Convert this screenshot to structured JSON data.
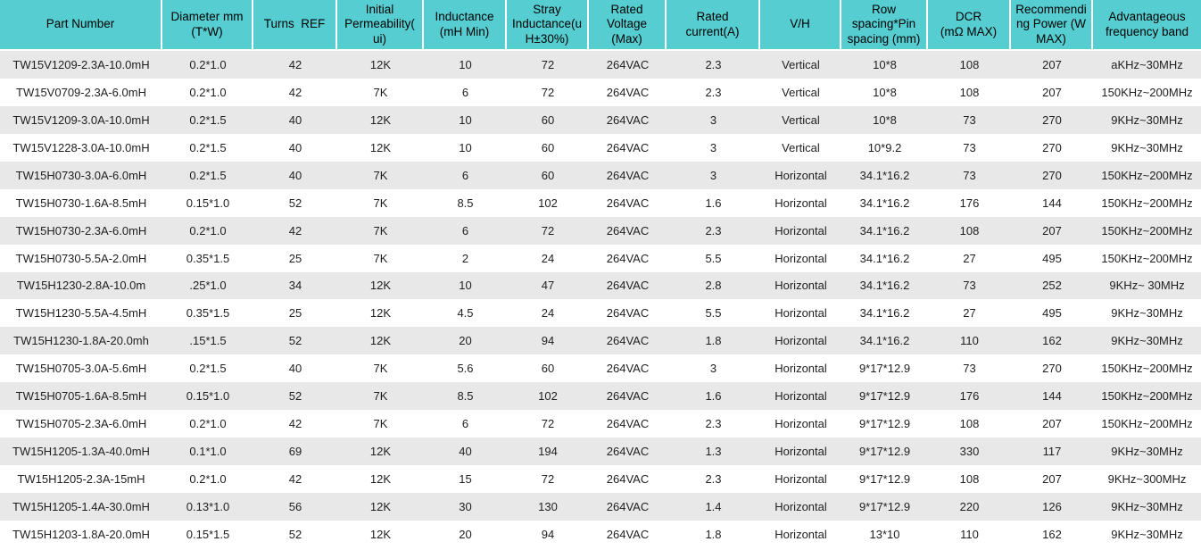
{
  "colors": {
    "header_bg": "#55cdd1",
    "row_alt_bg": "#e8e8e8",
    "row_bg": "#ffffff",
    "divider": "#ffffff",
    "header_text": "#000000",
    "cell_text": "#1f1f1f"
  },
  "table": {
    "columns": [
      {
        "id": "part-number",
        "label": "Part Number"
      },
      {
        "id": "diameter",
        "label": "Diameter mm\n(T*W)"
      },
      {
        "id": "turns-ref",
        "label": "Turns  REF"
      },
      {
        "id": "initial-permeability",
        "label": "Initial\nPermeability(\nui)"
      },
      {
        "id": "inductance",
        "label": "Inductance\n(mH Min)"
      },
      {
        "id": "stray-inductance",
        "label": "Stray\nInductance(u\nH±30%)"
      },
      {
        "id": "rated-voltage",
        "label": "Rated\nVoltage\n(Max)"
      },
      {
        "id": "rated-current",
        "label": "Rated\ncurrent(A)"
      },
      {
        "id": "v-h",
        "label": "V/H"
      },
      {
        "id": "row-spacing",
        "label": "Row\nspacing*Pin\nspacing (mm)"
      },
      {
        "id": "dcr",
        "label": "DCR\n(mΩ MAX)"
      },
      {
        "id": "recommending-power",
        "label": "Recommendi\nng Power (W\nMAX)"
      },
      {
        "id": "frequency-band",
        "label": "Advantageous\nfrequency band"
      }
    ],
    "rows": [
      [
        "TW15V1209-2.3A-10.0mH",
        "0.2*1.0",
        "42",
        "12K",
        "10",
        "72",
        "264VAC",
        "2.3",
        "Vertical",
        "10*8",
        "108",
        "207",
        "aKHz~30MHz"
      ],
      [
        "TW15V0709-2.3A-6.0mH",
        "0.2*1.0",
        "42",
        "7K",
        "6",
        "72",
        "264VAC",
        "2.3",
        "Vertical",
        "10*8",
        "108",
        "207",
        "150KHz~200MHz"
      ],
      [
        "TW15V1209-3.0A-10.0mH",
        "0.2*1.5",
        "40",
        "12K",
        "10",
        "60",
        "264VAC",
        "3",
        "Vertical",
        "10*8",
        "73",
        "270",
        "9KHz~30MHz"
      ],
      [
        "TW15V1228-3.0A-10.0mH",
        "0.2*1.5",
        "40",
        "12K",
        "10",
        "60",
        "264VAC",
        "3",
        "Vertical",
        "10*9.2",
        "73",
        "270",
        "9KHz~30MHz"
      ],
      [
        "TW15H0730-3.0A-6.0mH",
        "0.2*1.5",
        "40",
        "7K",
        "6",
        "60",
        "264VAC",
        "3",
        "Horizontal",
        "34.1*16.2",
        "73",
        "270",
        "150KHz~200MHz"
      ],
      [
        "TW15H0730-1.6A-8.5mH",
        "0.15*1.0",
        "52",
        "7K",
        "8.5",
        "102",
        "264VAC",
        "1.6",
        "Horizontal",
        "34.1*16.2",
        "176",
        "144",
        "150KHz~200MHz"
      ],
      [
        "TW15H0730-2.3A-6.0mH",
        "0.2*1.0",
        "42",
        "7K",
        "6",
        "72",
        "264VAC",
        "2.3",
        "Horizontal",
        "34.1*16.2",
        "108",
        "207",
        "150KHz~200MHz"
      ],
      [
        "TW15H0730-5.5A-2.0mH",
        "0.35*1.5",
        "25",
        "7K",
        "2",
        "24",
        "264VAC",
        "5.5",
        "Horizontal",
        "34.1*16.2",
        "27",
        "495",
        "150KHz~200MHz"
      ],
      [
        "TW15H1230-2.8A-10.0m",
        ".25*1.0",
        "34",
        "12K",
        "10",
        "47",
        "264VAC",
        "2.8",
        "Horizontal",
        "34.1*16.2",
        "73",
        "252",
        "9KHz~ 30MHz"
      ],
      [
        "TW15H1230-5.5A-4.5mH",
        "0.35*1.5",
        "25",
        "12K",
        "4.5",
        "24",
        "264VAC",
        "5.5",
        "Horizontal",
        "34.1*16.2",
        "27",
        "495",
        "9KHz~30MHz"
      ],
      [
        "TW15H1230-1.8A-20.0mh",
        ".15*1.5",
        "52",
        "12K",
        "20",
        "94",
        "264VAC",
        "1.8",
        "Horizontal",
        "34.1*16.2",
        "110",
        "162",
        "9KHz~30MHz"
      ],
      [
        "TW15H0705-3.0A-5.6mH",
        "0.2*1.5",
        "40",
        "7K",
        "5.6",
        "60",
        "264VAC",
        "3",
        "Horizontal",
        "9*17*12.9",
        "73",
        "270",
        "150KHz~200MHz"
      ],
      [
        "TW15H0705-1.6A-8.5mH",
        "0.15*1.0",
        "52",
        "7K",
        "8.5",
        "102",
        "264VAC",
        "1.6",
        "Horizontal",
        "9*17*12.9",
        "176",
        "144",
        "150KHz~200MHz"
      ],
      [
        "TW15H0705-2.3A-6.0mH",
        "0.2*1.0",
        "42",
        "7K",
        "6",
        "72",
        "264VAC",
        "2.3",
        "Horizontal",
        "9*17*12.9",
        "108",
        "207",
        "150KHz~200MHz"
      ],
      [
        "TW15H1205-1.3A-40.0mH",
        "0.1*1.0",
        "69",
        "12K",
        "40",
        "194",
        "264VAC",
        "1.3",
        "Horizontal",
        "9*17*12.9",
        "330",
        "117",
        "9KHz~30MHz"
      ],
      [
        "TW15H1205-2.3A-15mH",
        "0.2*1.0",
        "42",
        "12K",
        "15",
        "72",
        "264VAC",
        "2.3",
        "Horizontal",
        "9*17*12.9",
        "108",
        "207",
        "9KHz~300MHz"
      ],
      [
        "TW15H1205-1.4A-30.0mH",
        "0.13*1.0",
        "56",
        "12K",
        "30",
        "130",
        "264VAC",
        "1.4",
        "Horizontal",
        "9*17*12.9",
        "220",
        "126",
        "9KHz~30MHz"
      ],
      [
        "TW15H1203-1.8A-20.0mH",
        "0.15*1.5",
        "52",
        "12K",
        "20",
        "94",
        "264VAC",
        "1.8",
        "Horizontal",
        "13*10",
        "110",
        "162",
        "9KHz~30MHz"
      ]
    ]
  }
}
